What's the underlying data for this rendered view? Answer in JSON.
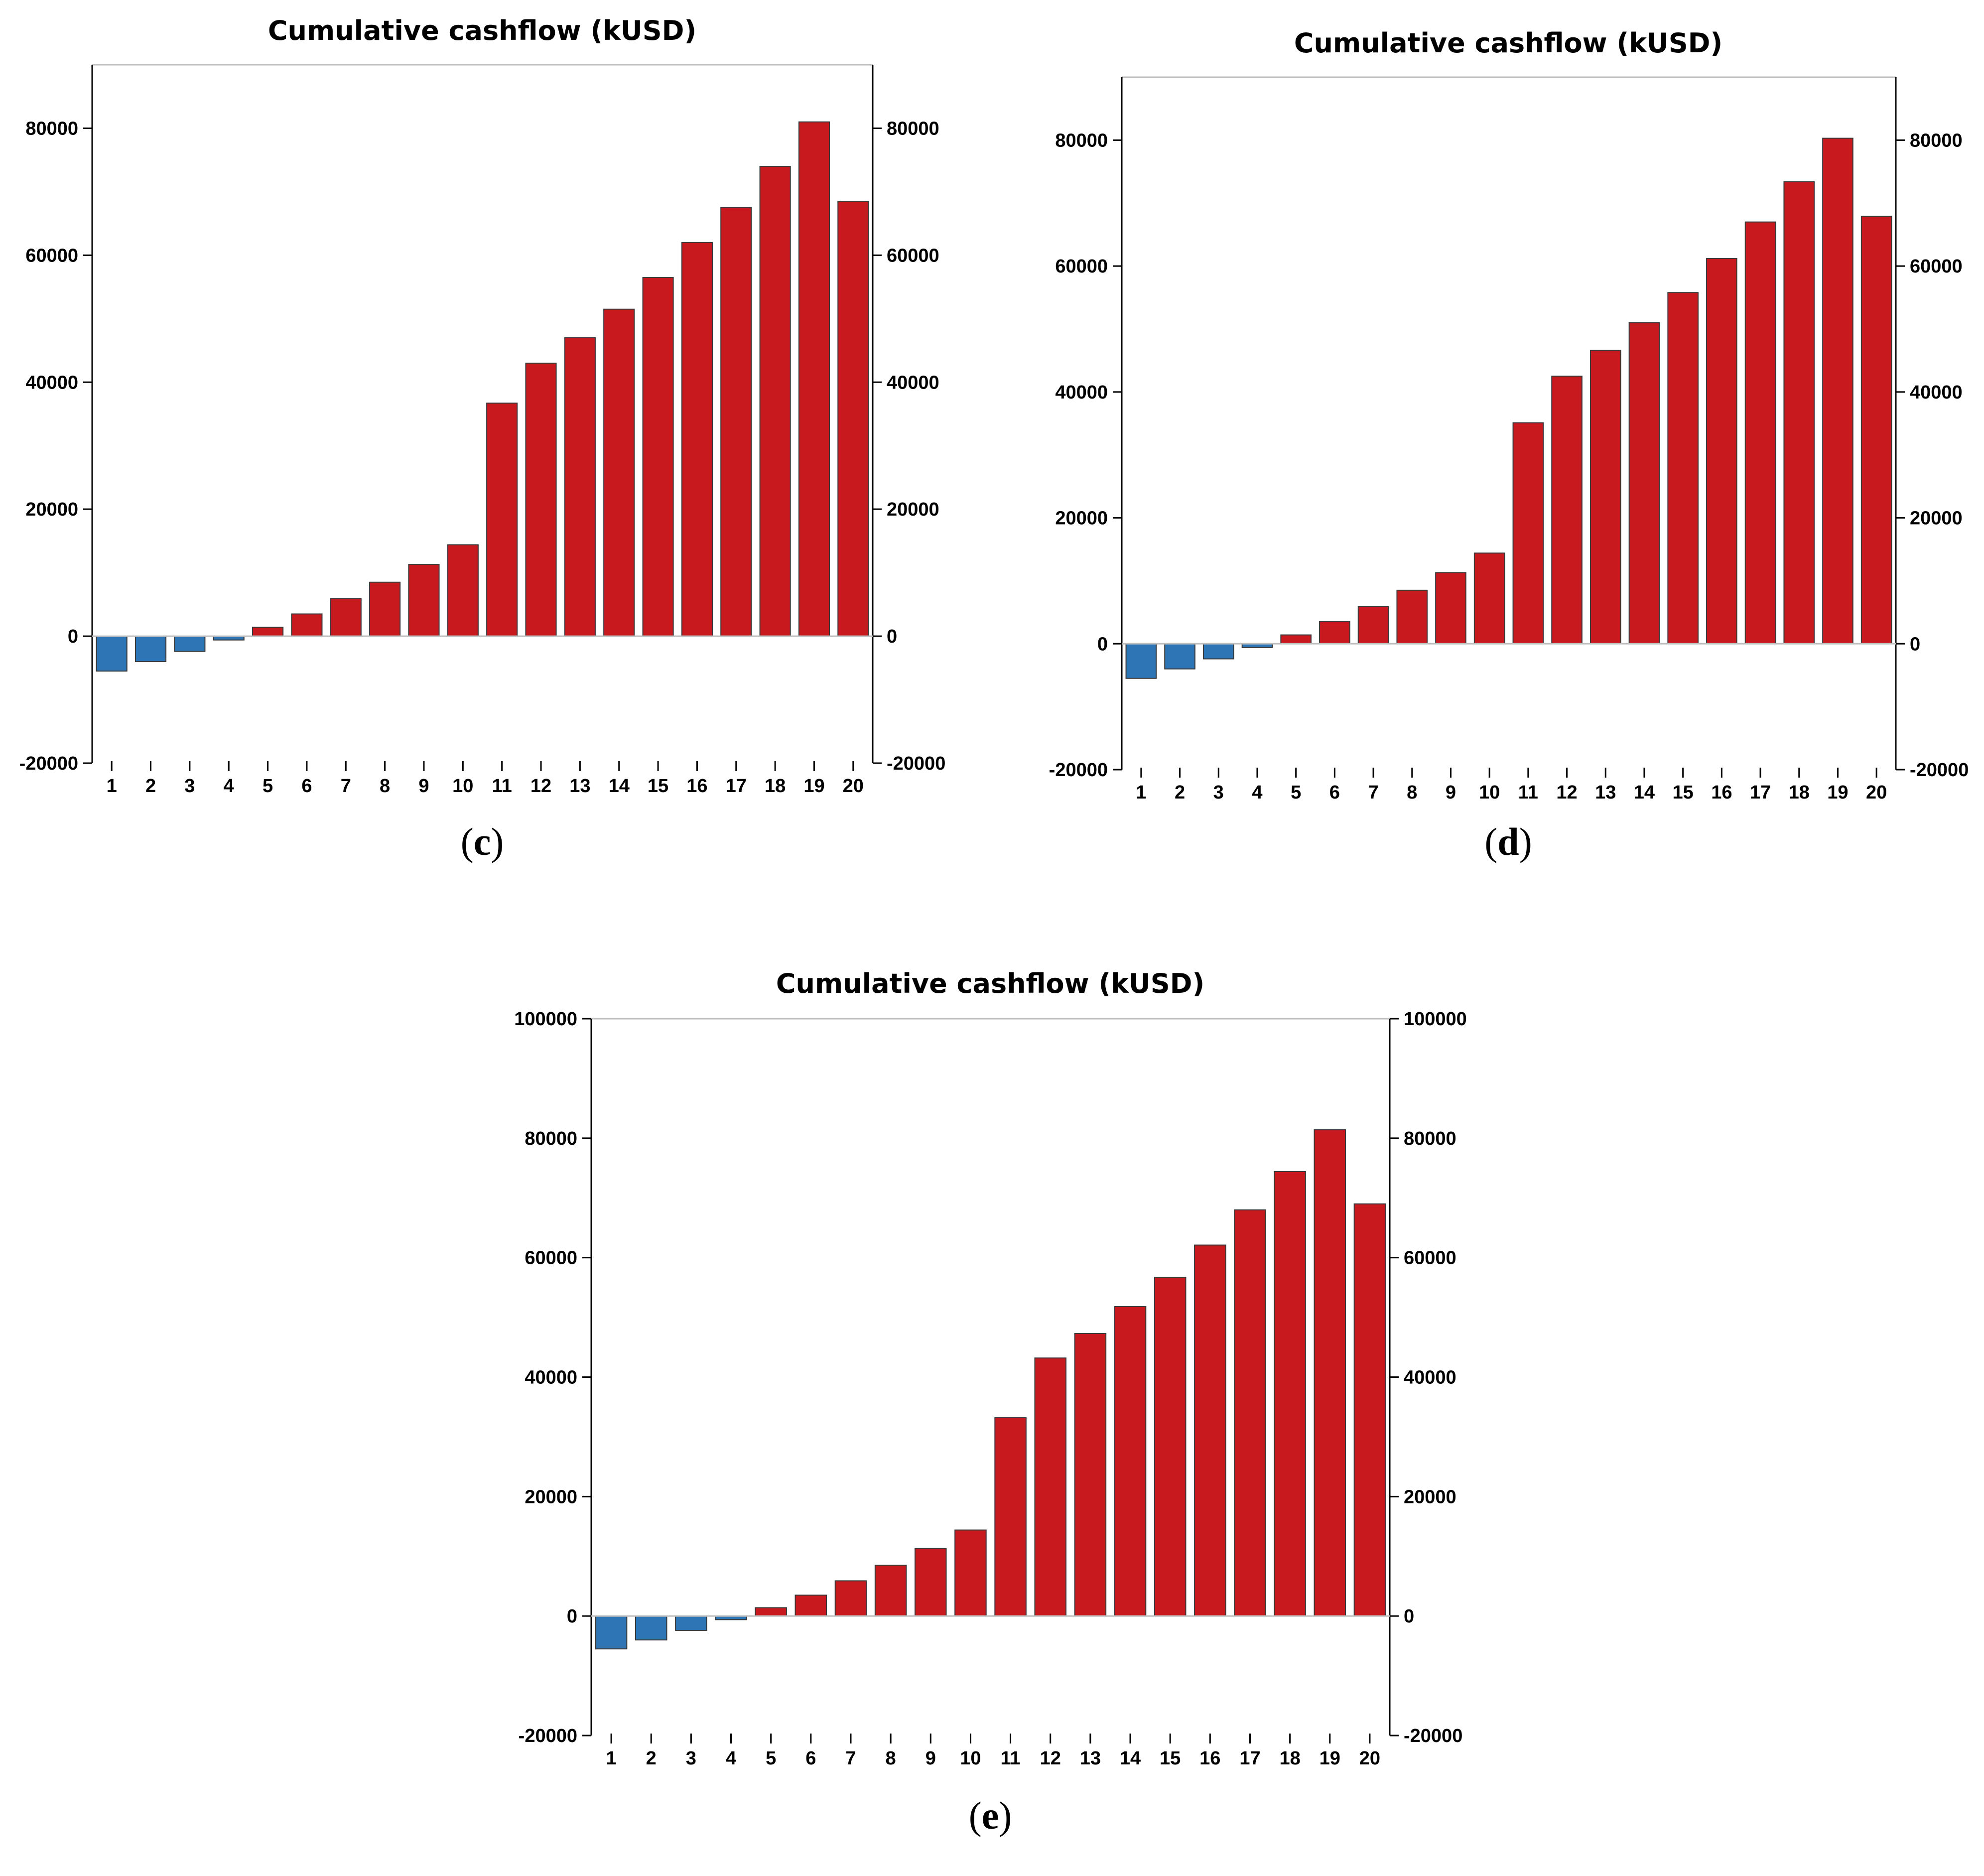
{
  "colors": {
    "negative": "#2E75B6",
    "positive": "#C8191F",
    "axis": "#000000",
    "frame": "#BFBFBF"
  },
  "chart_data": [
    {
      "id": "c",
      "type": "bar",
      "title": "Cumulative cashflow (kUSD)",
      "caption": "c",
      "xlabel": "",
      "ylabel": "",
      "ylim": [
        -20000,
        90000
      ],
      "yticks": [
        -20000,
        0,
        20000,
        40000,
        60000,
        80000
      ],
      "ytick_labels": [
        "-20000",
        "0",
        "20000",
        "40000",
        "60000",
        "80000"
      ],
      "categories": [
        "1",
        "2",
        "3",
        "4",
        "5",
        "6",
        "7",
        "8",
        "9",
        "10",
        "11",
        "12",
        "13",
        "14",
        "15",
        "16",
        "17",
        "18",
        "19",
        "20"
      ],
      "values": [
        -5500,
        -4000,
        -2400,
        -600,
        1400,
        3500,
        5900,
        8500,
        11300,
        14400,
        36700,
        43000,
        47000,
        51500,
        56500,
        62000,
        67500,
        74000,
        81000,
        68500
      ]
    },
    {
      "id": "d",
      "type": "bar",
      "title": "Cumulative cashflow (kUSD)",
      "caption": "d",
      "xlabel": "",
      "ylabel": "",
      "ylim": [
        -20000,
        90000
      ],
      "yticks": [
        -20000,
        0,
        20000,
        40000,
        60000,
        80000
      ],
      "ytick_labels": [
        "-20000",
        "0",
        "20000",
        "40000",
        "60000",
        "80000"
      ],
      "categories": [
        "1",
        "2",
        "3",
        "4",
        "5",
        "6",
        "7",
        "8",
        "9",
        "10",
        "11",
        "12",
        "13",
        "14",
        "15",
        "16",
        "17",
        "18",
        "19",
        "20"
      ],
      "values": [
        -5500,
        -4000,
        -2400,
        -600,
        1400,
        3500,
        5900,
        8500,
        11300,
        14400,
        35100,
        42500,
        46600,
        51000,
        55800,
        61200,
        67000,
        73400,
        80300,
        67900
      ]
    },
    {
      "id": "e",
      "type": "bar",
      "title": "Cumulative cashflow (kUSD)",
      "caption": "e",
      "xlabel": "",
      "ylabel": "",
      "ylim": [
        -20000,
        100000
      ],
      "yticks": [
        -20000,
        0,
        20000,
        40000,
        60000,
        80000,
        100000
      ],
      "ytick_labels": [
        "-20000",
        "0",
        "20000",
        "40000",
        "60000",
        "80000",
        "100000"
      ],
      "categories": [
        "1",
        "2",
        "3",
        "4",
        "5",
        "6",
        "7",
        "8",
        "9",
        "10",
        "11",
        "12",
        "13",
        "14",
        "15",
        "16",
        "17",
        "18",
        "19",
        "20"
      ],
      "values": [
        -5500,
        -4000,
        -2400,
        -600,
        1400,
        3500,
        5900,
        8500,
        11300,
        14400,
        33200,
        43200,
        47300,
        51800,
        56700,
        62100,
        68000,
        74400,
        81400,
        69000
      ]
    }
  ]
}
